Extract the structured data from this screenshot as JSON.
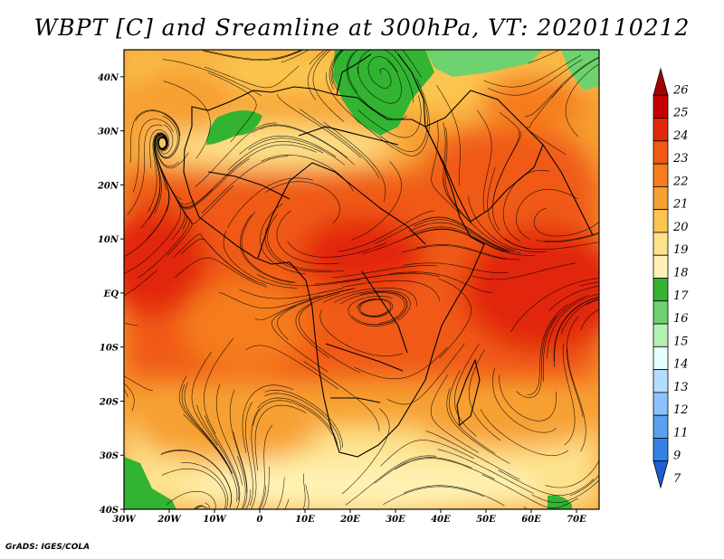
{
  "title": "WBPT [C] and Sreamline at 300hPa, VT: 2020110212",
  "footer": "GrADS: IGES/COLA",
  "map": {
    "lon_range": [
      -30,
      75
    ],
    "lat_range": [
      -40,
      45
    ],
    "lon_ticks": [
      {
        "value": -30,
        "label": "30W"
      },
      {
        "value": -20,
        "label": "20W"
      },
      {
        "value": -10,
        "label": "10W"
      },
      {
        "value": 0,
        "label": "0"
      },
      {
        "value": 10,
        "label": "10E"
      },
      {
        "value": 20,
        "label": "20E"
      },
      {
        "value": 30,
        "label": "30E"
      },
      {
        "value": 40,
        "label": "40E"
      },
      {
        "value": 50,
        "label": "50E"
      },
      {
        "value": 60,
        "label": "60E"
      },
      {
        "value": 70,
        "label": "70E"
      }
    ],
    "lat_ticks": [
      {
        "value": 40,
        "label": "40N"
      },
      {
        "value": 30,
        "label": "30N"
      },
      {
        "value": 20,
        "label": "20N"
      },
      {
        "value": 10,
        "label": "10N"
      },
      {
        "value": 0,
        "label": "EQ"
      },
      {
        "value": -10,
        "label": "10S"
      },
      {
        "value": -20,
        "label": "20S"
      },
      {
        "value": -30,
        "label": "30S"
      },
      {
        "value": -40,
        "label": "40S"
      }
    ]
  },
  "colorbar": {
    "levels": [
      {
        "label": "26",
        "color": "#a50000"
      },
      {
        "label": "25",
        "color": "#c60000"
      },
      {
        "label": "24",
        "color": "#e2280a"
      },
      {
        "label": "23",
        "color": "#f05a14"
      },
      {
        "label": "22",
        "color": "#f57d1e"
      },
      {
        "label": "21",
        "color": "#f7a032"
      },
      {
        "label": "20",
        "color": "#fbc650"
      },
      {
        "label": "19",
        "color": "#fde28c"
      },
      {
        "label": "18",
        "color": "#fff2b4"
      },
      {
        "label": "17",
        "color": "#32b432"
      },
      {
        "label": "16",
        "color": "#6ed26e"
      },
      {
        "label": "15",
        "color": "#b4f0b4"
      },
      {
        "label": "14",
        "color": "#e6ffff"
      },
      {
        "label": "13",
        "color": "#b4dcff"
      },
      {
        "label": "12",
        "color": "#8cc3ff"
      },
      {
        "label": "11",
        "color": "#5aa0f0"
      },
      {
        "label": "9",
        "color": "#3282e6"
      },
      {
        "label": "7",
        "color": "#1e5fd2"
      }
    ]
  }
}
